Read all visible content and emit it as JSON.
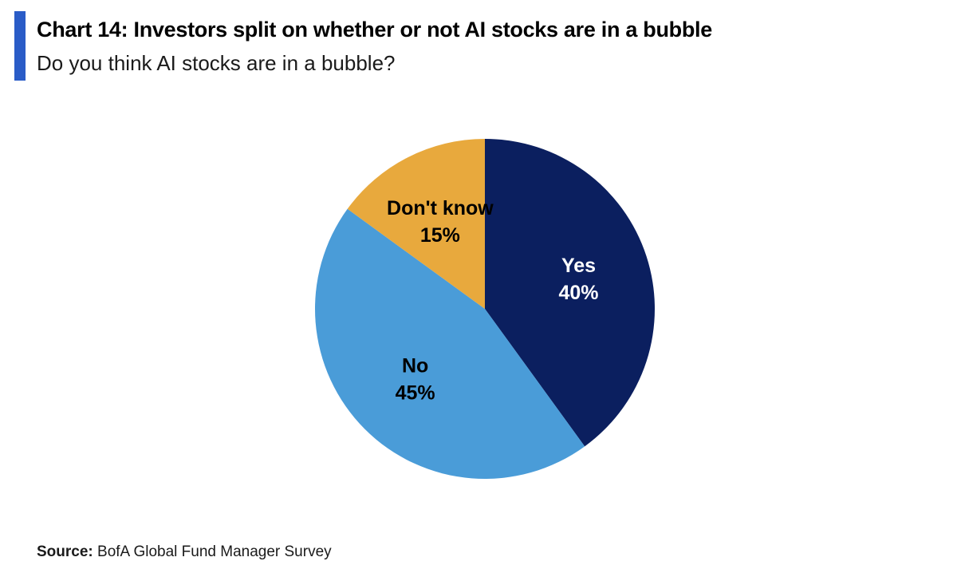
{
  "header": {
    "title": "Chart 14: Investors split on whether or not AI stocks are in a bubble",
    "subtitle": "Do you think AI stocks are in a bubble?"
  },
  "footer": {
    "source_prefix": "Source:",
    "source_text": " BofA Global Fund Manager Survey"
  },
  "colors": {
    "accent": "#2a5cc7"
  },
  "chart_data": {
    "type": "pie",
    "title": "Chart 14: Investors split on whether or not AI stocks are in a bubble",
    "subtitle": "Do you think AI stocks are in a bubble?",
    "slices": [
      {
        "label": "Yes",
        "value": 40,
        "display": "40%",
        "color": "#0b1f5f",
        "text_color": "#ffffff"
      },
      {
        "label": "No",
        "value": 45,
        "display": "45%",
        "color": "#4a9cd8",
        "text_color": "#000000"
      },
      {
        "label": "Don't know",
        "value": 15,
        "display": "15%",
        "color": "#e8a93d",
        "text_color": "#000000"
      }
    ],
    "start_angle": "12 o'clock",
    "direction": "clockwise",
    "legend": "none"
  }
}
